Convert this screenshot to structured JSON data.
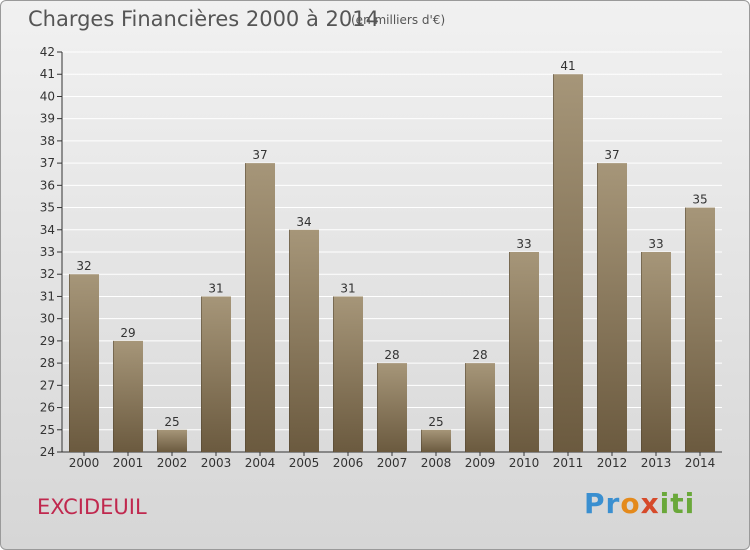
{
  "title": "Charges Financières 2000 à 2014",
  "subtitle": "(en milliers d'€)",
  "town": "EXCIDEUIL",
  "logo": "Proxiti",
  "colors": {
    "bar_top": "#a69679",
    "bar_bottom": "#6b5a3f",
    "grid": "#ffffff",
    "axis": "#333333"
  },
  "chart_data": {
    "type": "bar",
    "categories": [
      "2000",
      "2001",
      "2002",
      "2003",
      "2004",
      "2005",
      "2006",
      "2007",
      "2008",
      "2009",
      "2010",
      "2011",
      "2012",
      "2013",
      "2014"
    ],
    "values": [
      32,
      29,
      25,
      31,
      37,
      34,
      31,
      28,
      25,
      28,
      33,
      41,
      37,
      33,
      35
    ],
    "ylim": [
      24,
      42
    ],
    "yticks": [
      24,
      25,
      26,
      27,
      28,
      29,
      30,
      31,
      32,
      33,
      34,
      35,
      36,
      37,
      38,
      39,
      40,
      41,
      42
    ],
    "xlabel": "",
    "ylabel": "",
    "grid": true
  }
}
